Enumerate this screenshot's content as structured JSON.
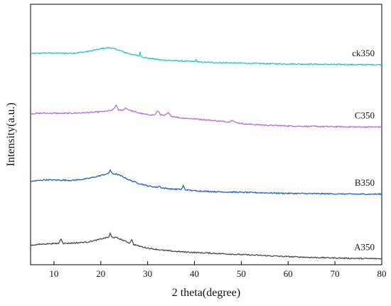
{
  "chart_data": {
    "type": "line",
    "title": "",
    "xlabel": "2 theta(degree)",
    "ylabel": "Intensity(a.u.)",
    "xlim": [
      5,
      80
    ],
    "xticks": [
      10,
      20,
      30,
      40,
      50,
      60,
      70,
      80
    ],
    "ylim": [
      0,
      100
    ],
    "yticks_shown": false,
    "grid": false,
    "legend": "inline labels at right end of each curve",
    "series": [
      {
        "name": "ck350",
        "color": "#27c4c4",
        "points": [
          [
            5,
            81.0
          ],
          [
            8,
            81.3
          ],
          [
            11,
            81.2
          ],
          [
            14,
            81.2
          ],
          [
            17,
            81.8
          ],
          [
            19,
            82.5
          ],
          [
            20.5,
            83.1
          ],
          [
            22,
            83.3
          ],
          [
            23.5,
            82.6
          ],
          [
            25,
            81.6
          ],
          [
            27,
            80.6
          ],
          [
            28.2,
            80.2
          ],
          [
            28.4,
            81.8
          ],
          [
            28.6,
            80.0
          ],
          [
            30,
            79.3
          ],
          [
            33,
            78.6
          ],
          [
            36,
            78.3
          ],
          [
            40,
            78.0
          ],
          [
            40.4,
            78.6
          ],
          [
            40.8,
            77.8
          ],
          [
            45,
            77.6
          ],
          [
            50,
            77.4
          ],
          [
            55,
            77.2
          ],
          [
            60,
            77.1
          ],
          [
            65,
            77.0
          ],
          [
            70,
            76.9
          ],
          [
            75,
            76.8
          ],
          [
            80,
            76.8
          ]
        ]
      },
      {
        "name": "C350",
        "color": "#b66ddf",
        "points": [
          [
            5,
            58.0
          ],
          [
            8,
            58.2
          ],
          [
            12,
            58.1
          ],
          [
            16,
            58.3
          ],
          [
            19,
            58.6
          ],
          [
            21,
            58.9
          ],
          [
            22.5,
            59.3
          ],
          [
            23.3,
            61.2
          ],
          [
            23.8,
            59.4
          ],
          [
            24.6,
            59.2
          ],
          [
            25.3,
            60.2
          ],
          [
            26,
            59.4
          ],
          [
            27,
            58.9
          ],
          [
            28,
            58.3
          ],
          [
            30,
            57.6
          ],
          [
            31.5,
            57.5
          ],
          [
            32.2,
            59.1
          ],
          [
            32.8,
            57.6
          ],
          [
            33.6,
            57.2
          ],
          [
            34.4,
            58.3
          ],
          [
            35,
            57.1
          ],
          [
            37,
            56.4
          ],
          [
            40,
            56.0
          ],
          [
            42,
            55.7
          ],
          [
            45,
            55.2
          ],
          [
            47.5,
            54.8
          ],
          [
            48,
            55.7
          ],
          [
            48.6,
            54.7
          ],
          [
            51,
            54.0
          ],
          [
            55,
            53.6
          ],
          [
            60,
            53.3
          ],
          [
            65,
            53.1
          ],
          [
            70,
            53.0
          ],
          [
            75,
            52.9
          ],
          [
            80,
            52.9
          ]
        ]
      },
      {
        "name": "B350",
        "color": "#1c64c8",
        "points": [
          [
            5,
            32.0
          ],
          [
            8,
            32.6
          ],
          [
            11,
            32.5
          ],
          [
            14,
            32.4
          ],
          [
            17,
            33.0
          ],
          [
            19,
            33.8
          ],
          [
            20.5,
            34.5
          ],
          [
            21.6,
            35.0
          ],
          [
            22,
            36.4
          ],
          [
            22.4,
            35.0
          ],
          [
            23.3,
            34.8
          ],
          [
            24.5,
            34.0
          ],
          [
            26,
            32.6
          ],
          [
            28,
            31.3
          ],
          [
            30,
            30.3
          ],
          [
            32,
            29.7
          ],
          [
            32.5,
            30.2
          ],
          [
            33,
            29.5
          ],
          [
            35,
            29.1
          ],
          [
            37.2,
            28.9
          ],
          [
            37.6,
            30.3
          ],
          [
            38,
            28.8
          ],
          [
            40,
            28.4
          ],
          [
            45,
            28.0
          ],
          [
            50,
            27.8
          ],
          [
            55,
            27.6
          ],
          [
            60,
            27.4
          ],
          [
            65,
            27.3
          ],
          [
            70,
            27.2
          ],
          [
            75,
            27.1
          ],
          [
            80,
            27.1
          ]
        ]
      },
      {
        "name": "A350",
        "color": "#4a4a4a",
        "points": [
          [
            5,
            7.5
          ],
          [
            8,
            8.0
          ],
          [
            11,
            8.2
          ],
          [
            11.5,
            10.0
          ],
          [
            12,
            8.2
          ],
          [
            14,
            8.3
          ],
          [
            17,
            8.7
          ],
          [
            19,
            9.4
          ],
          [
            20.5,
            10.1
          ],
          [
            21.7,
            10.6
          ],
          [
            22,
            12.0
          ],
          [
            22.3,
            10.7
          ],
          [
            23.5,
            10.3
          ],
          [
            25,
            9.2
          ],
          [
            26.2,
            8.3
          ],
          [
            26.6,
            9.8
          ],
          [
            27,
            7.8
          ],
          [
            28.5,
            7.0
          ],
          [
            30,
            6.4
          ],
          [
            33,
            5.6
          ],
          [
            36,
            5.1
          ],
          [
            40,
            4.7
          ],
          [
            45,
            4.3
          ],
          [
            50,
            3.9
          ],
          [
            55,
            3.5
          ],
          [
            60,
            3.1
          ],
          [
            65,
            2.8
          ],
          [
            70,
            2.6
          ],
          [
            75,
            2.4
          ],
          [
            80,
            2.3
          ]
        ]
      }
    ]
  }
}
